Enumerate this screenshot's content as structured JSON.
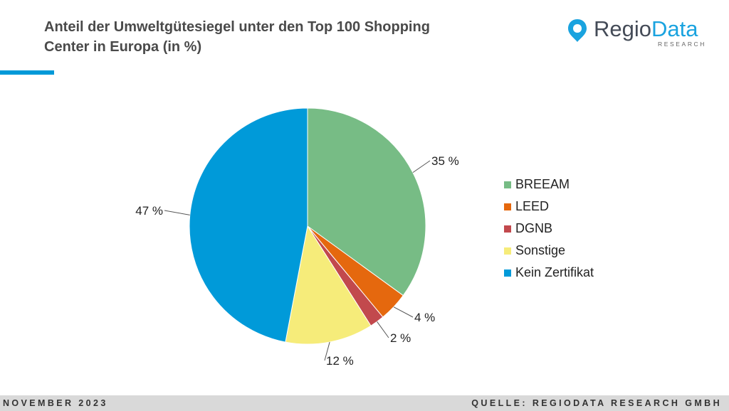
{
  "header": {
    "title_line1": "Anteil der Umweltgütesiegel unter den Top 100 Shopping",
    "title_line2": "Center in Europa (in %)",
    "accent_color": "#0099d8"
  },
  "logo": {
    "word_part1": "Regio",
    "word_part2": "Data",
    "subtitle": "RESEARCH",
    "icon": "map-pin-icon",
    "brand_color": "#1aa3df"
  },
  "chart_data": {
    "type": "pie",
    "title": "Anteil der Umweltgütesiegel unter den Top 100 Shopping Center in Europa (in %)",
    "legend_position": "right",
    "slices": [
      {
        "name": "BREEAM",
        "value": 35,
        "label": "35 %",
        "color": "#77bc85"
      },
      {
        "name": "LEED",
        "value": 4,
        "label": "4 %",
        "color": "#e5680e"
      },
      {
        "name": "DGNB",
        "value": 2,
        "label": "2 %",
        "color": "#c2494d"
      },
      {
        "name": "Sonstige",
        "value": 12,
        "label": "12 %",
        "color": "#f6ec7a"
      },
      {
        "name": "Kein Zertifikat",
        "value": 47,
        "label": "47 %",
        "color": "#009ad9"
      }
    ]
  },
  "footer": {
    "date": "NOVEMBER 2023",
    "source": "QUELLE: REGIODATA RESEARCH GMBH"
  }
}
